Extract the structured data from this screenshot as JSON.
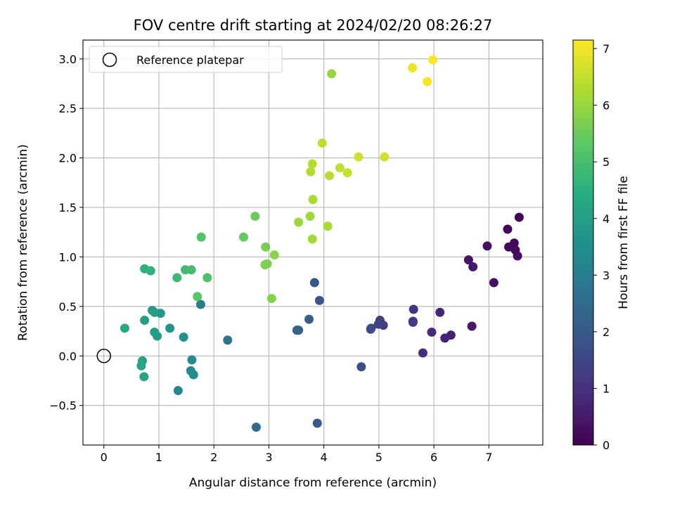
{
  "chart_data": {
    "type": "scatter",
    "title": "FOV centre drift starting at 2024/02/20 08:26:27",
    "xlabel": "Angular distance from reference (arcmin)",
    "ylabel": "Rotation from reference (arcmin)",
    "xlim": [
      -0.38,
      7.98
    ],
    "ylim": [
      -0.9,
      3.19
    ],
    "xticks": [
      0,
      1,
      2,
      3,
      4,
      5,
      6,
      7
    ],
    "xtick_labels": [
      "0",
      "1",
      "2",
      "3",
      "4",
      "5",
      "6",
      "7"
    ],
    "yticks": [
      -0.5,
      0.0,
      0.5,
      1.0,
      1.5,
      2.0,
      2.5,
      3.0
    ],
    "ytick_labels": [
      "−0.5",
      "0.0",
      "0.5",
      "1.0",
      "1.5",
      "2.0",
      "2.5",
      "3.0"
    ],
    "grid": true,
    "legend": {
      "location": "upper-left",
      "entries": [
        {
          "label": "Reference platepar",
          "marker": "open-circle",
          "color": "#000000"
        }
      ]
    },
    "reference_point": {
      "x": 0,
      "y": 0
    },
    "colorbar": {
      "label": "Hours from first FF file",
      "colormap": "viridis",
      "range": [
        0,
        7.15
      ],
      "ticks": [
        0,
        1,
        2,
        3,
        4,
        5,
        6,
        7
      ],
      "tick_labels": [
        "0",
        "1",
        "2",
        "3",
        "4",
        "5",
        "6",
        "7"
      ]
    },
    "points": [
      {
        "x": 7.55,
        "y": 1.4,
        "t": 0.05
      },
      {
        "x": 7.34,
        "y": 1.28,
        "t": 0.1
      },
      {
        "x": 7.46,
        "y": 1.14,
        "t": 0.12
      },
      {
        "x": 7.36,
        "y": 1.1,
        "t": 0.15
      },
      {
        "x": 7.48,
        "y": 1.07,
        "t": 0.18
      },
      {
        "x": 7.52,
        "y": 1.01,
        "t": 0.2
      },
      {
        "x": 6.97,
        "y": 1.11,
        "t": 0.3
      },
      {
        "x": 7.09,
        "y": 0.74,
        "t": 0.35
      },
      {
        "x": 6.63,
        "y": 0.97,
        "t": 0.4
      },
      {
        "x": 6.71,
        "y": 0.9,
        "t": 0.45
      },
      {
        "x": 6.69,
        "y": 0.3,
        "t": 0.5
      },
      {
        "x": 6.31,
        "y": 0.21,
        "t": 0.65
      },
      {
        "x": 6.2,
        "y": 0.18,
        "t": 0.7
      },
      {
        "x": 6.11,
        "y": 0.44,
        "t": 0.75
      },
      {
        "x": 5.96,
        "y": 0.24,
        "t": 0.85
      },
      {
        "x": 5.8,
        "y": 0.03,
        "t": 0.9
      },
      {
        "x": 5.63,
        "y": 0.47,
        "t": 1.05
      },
      {
        "x": 5.62,
        "y": 0.35,
        "t": 1.1
      },
      {
        "x": 5.62,
        "y": 0.34,
        "t": 1.15
      },
      {
        "x": 5.08,
        "y": 0.31,
        "t": 1.3
      },
      {
        "x": 5.02,
        "y": 0.36,
        "t": 1.35
      },
      {
        "x": 4.99,
        "y": 0.32,
        "t": 1.4
      },
      {
        "x": 4.86,
        "y": 0.28,
        "t": 1.55
      },
      {
        "x": 4.85,
        "y": 0.27,
        "t": 1.6
      },
      {
        "x": 4.68,
        "y": -0.11,
        "t": 1.7
      },
      {
        "x": 3.92,
        "y": 0.56,
        "t": 1.85
      },
      {
        "x": 3.83,
        "y": 0.74,
        "t": 1.9
      },
      {
        "x": 3.88,
        "y": -0.68,
        "t": 2.0
      },
      {
        "x": 3.73,
        "y": 0.37,
        "t": 2.1
      },
      {
        "x": 3.54,
        "y": 0.26,
        "t": 2.2
      },
      {
        "x": 3.51,
        "y": 0.26,
        "t": 2.25
      },
      {
        "x": 2.77,
        "y": -0.72,
        "t": 2.45
      },
      {
        "x": 2.25,
        "y": 0.16,
        "t": 2.75
      },
      {
        "x": 1.76,
        "y": 0.52,
        "t": 3.0
      },
      {
        "x": 1.35,
        "y": -0.35,
        "t": 3.3
      },
      {
        "x": 1.6,
        "y": -0.04,
        "t": 3.4
      },
      {
        "x": 1.58,
        "y": -0.15,
        "t": 3.5
      },
      {
        "x": 1.63,
        "y": -0.19,
        "t": 3.55
      },
      {
        "x": 1.45,
        "y": 0.19,
        "t": 3.6
      },
      {
        "x": 1.2,
        "y": 0.28,
        "t": 3.7
      },
      {
        "x": 1.03,
        "y": 0.43,
        "t": 3.8
      },
      {
        "x": 0.88,
        "y": 0.46,
        "t": 3.85
      },
      {
        "x": 0.92,
        "y": 0.44,
        "t": 3.9
      },
      {
        "x": 0.97,
        "y": 0.2,
        "t": 3.95
      },
      {
        "x": 0.92,
        "y": 0.24,
        "t": 4.0
      },
      {
        "x": 0.74,
        "y": 0.36,
        "t": 4.05
      },
      {
        "x": 0.7,
        "y": -0.05,
        "t": 4.1
      },
      {
        "x": 0.68,
        "y": -0.1,
        "t": 4.15
      },
      {
        "x": 0.73,
        "y": -0.21,
        "t": 4.2
      },
      {
        "x": 0.38,
        "y": 0.28,
        "t": 4.35
      },
      {
        "x": 0.74,
        "y": 0.88,
        "t": 4.55
      },
      {
        "x": 0.85,
        "y": 0.86,
        "t": 4.6
      },
      {
        "x": 1.33,
        "y": 0.79,
        "t": 4.85
      },
      {
        "x": 1.48,
        "y": 0.87,
        "t": 4.9
      },
      {
        "x": 1.59,
        "y": 0.87,
        "t": 4.95
      },
      {
        "x": 1.88,
        "y": 0.79,
        "t": 5.1
      },
      {
        "x": 1.77,
        "y": 1.2,
        "t": 5.15
      },
      {
        "x": 1.7,
        "y": 0.6,
        "t": 5.25
      },
      {
        "x": 2.54,
        "y": 1.2,
        "t": 5.4
      },
      {
        "x": 2.75,
        "y": 1.41,
        "t": 5.5
      },
      {
        "x": 2.94,
        "y": 1.1,
        "t": 5.6
      },
      {
        "x": 2.97,
        "y": 0.93,
        "t": 5.7
      },
      {
        "x": 2.93,
        "y": 0.92,
        "t": 5.72
      },
      {
        "x": 3.05,
        "y": 0.58,
        "t": 5.75
      },
      {
        "x": 3.1,
        "y": 1.02,
        "t": 5.85
      },
      {
        "x": 3.54,
        "y": 1.35,
        "t": 6.05
      },
      {
        "x": 3.75,
        "y": 1.41,
        "t": 6.1
      },
      {
        "x": 3.79,
        "y": 1.18,
        "t": 6.15
      },
      {
        "x": 4.07,
        "y": 1.31,
        "t": 6.2
      },
      {
        "x": 3.8,
        "y": 1.58,
        "t": 6.25
      },
      {
        "x": 3.76,
        "y": 1.86,
        "t": 6.3
      },
      {
        "x": 3.79,
        "y": 1.94,
        "t": 6.35
      },
      {
        "x": 4.1,
        "y": 1.82,
        "t": 6.4
      },
      {
        "x": 3.97,
        "y": 2.15,
        "t": 6.45
      },
      {
        "x": 4.29,
        "y": 1.9,
        "t": 6.5
      },
      {
        "x": 4.43,
        "y": 1.85,
        "t": 6.55
      },
      {
        "x": 4.63,
        "y": 2.01,
        "t": 6.6
      },
      {
        "x": 5.1,
        "y": 2.01,
        "t": 6.65
      },
      {
        "x": 4.14,
        "y": 2.85,
        "t": 6.0
      },
      {
        "x": 5.61,
        "y": 2.91,
        "t": 6.95
      },
      {
        "x": 5.88,
        "y": 2.77,
        "t": 7.05
      },
      {
        "x": 5.98,
        "y": 2.99,
        "t": 7.15
      }
    ]
  }
}
